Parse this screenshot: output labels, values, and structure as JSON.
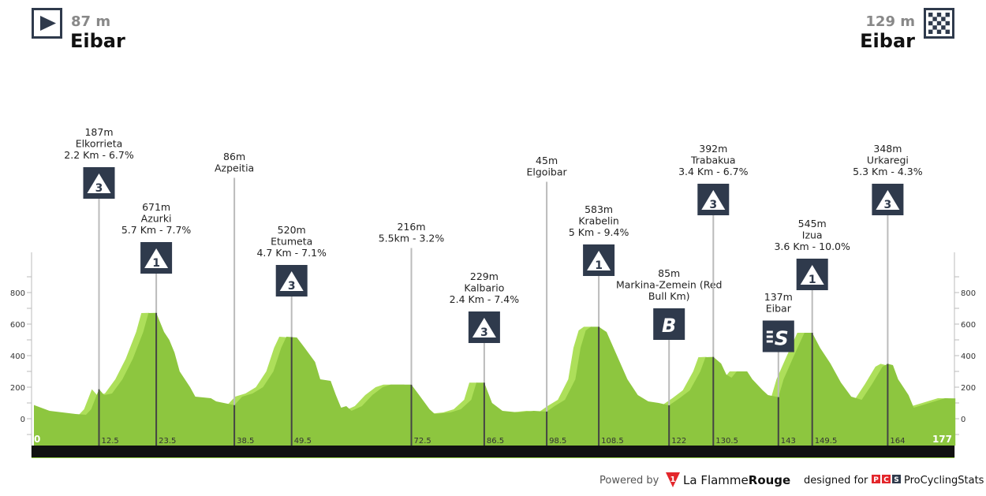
{
  "start": {
    "altitude": "87 m",
    "name": "Eibar",
    "icon": "play-start-icon"
  },
  "finish": {
    "altitude": "129 m",
    "name": "Eibar",
    "icon": "checkered-flag-icon"
  },
  "footer": {
    "powered_by": "Powered by",
    "brand1": "La Flamme",
    "brand1b": "Rouge",
    "brand1_logo": "1",
    "designed_for": "designed for",
    "pcs_letters": [
      "P",
      "C",
      "S"
    ],
    "brand2": "ProCyclingStats"
  },
  "colors": {
    "profile": "#8dc63f",
    "profile_shadow": "#addf5a",
    "badge": "#2f3a4c",
    "bar": "#111111",
    "brand_red": "#e3262b"
  },
  "chart_data": {
    "type": "area",
    "xlabel": "",
    "ylabel": "",
    "xlim": [
      0,
      177
    ],
    "ylim": [
      -200,
      1000
    ],
    "y_ticks": [
      0,
      200,
      400,
      600,
      800
    ],
    "x_ticks": [
      "0",
      "12.5",
      "23.5",
      "38.5",
      "49.5",
      "72.5",
      "86.5",
      "98.5",
      "108.5",
      "122",
      "130.5",
      "143",
      "149.5",
      "164",
      "177"
    ],
    "profile": [
      [
        0,
        87
      ],
      [
        3,
        50
      ],
      [
        8,
        30
      ],
      [
        10,
        25
      ],
      [
        11,
        60
      ],
      [
        12.5,
        187
      ],
      [
        13.5,
        150
      ],
      [
        15,
        160
      ],
      [
        17,
        250
      ],
      [
        19,
        380
      ],
      [
        21,
        550
      ],
      [
        22,
        670
      ],
      [
        23.5,
        671
      ],
      [
        25,
        550
      ],
      [
        26,
        500
      ],
      [
        27,
        420
      ],
      [
        28,
        300
      ],
      [
        30,
        200
      ],
      [
        31,
        140
      ],
      [
        34,
        130
      ],
      [
        35,
        110
      ],
      [
        38.5,
        86
      ],
      [
        40,
        140
      ],
      [
        42,
        160
      ],
      [
        44,
        200
      ],
      [
        46,
        300
      ],
      [
        47.5,
        450
      ],
      [
        48.5,
        520
      ],
      [
        50.5,
        515
      ],
      [
        52,
        450
      ],
      [
        54,
        360
      ],
      [
        55,
        250
      ],
      [
        57,
        240
      ],
      [
        58,
        150
      ],
      [
        59,
        70
      ],
      [
        60,
        80
      ],
      [
        61,
        50
      ],
      [
        63,
        80
      ],
      [
        65,
        150
      ],
      [
        67,
        200
      ],
      [
        68.5,
        216
      ],
      [
        72.5,
        216
      ],
      [
        74,
        150
      ],
      [
        76,
        60
      ],
      [
        77,
        30
      ],
      [
        80,
        40
      ],
      [
        82,
        60
      ],
      [
        84,
        120
      ],
      [
        85,
        229
      ],
      [
        86.5,
        229
      ],
      [
        88,
        100
      ],
      [
        90,
        50
      ],
      [
        93,
        40
      ],
      [
        96,
        50
      ],
      [
        98.5,
        45
      ],
      [
        100,
        80
      ],
      [
        102,
        120
      ],
      [
        104,
        250
      ],
      [
        105,
        450
      ],
      [
        106,
        560
      ],
      [
        107,
        583
      ],
      [
        108.5,
        583
      ],
      [
        110,
        550
      ],
      [
        112,
        400
      ],
      [
        114,
        250
      ],
      [
        116,
        150
      ],
      [
        118,
        110
      ],
      [
        120,
        100
      ],
      [
        122,
        85
      ],
      [
        124,
        130
      ],
      [
        126,
        180
      ],
      [
        128,
        300
      ],
      [
        129,
        390
      ],
      [
        130.5,
        392
      ],
      [
        132,
        350
      ],
      [
        133,
        280
      ],
      [
        134,
        260
      ],
      [
        135,
        300
      ],
      [
        137,
        300
      ],
      [
        138,
        250
      ],
      [
        140,
        180
      ],
      [
        141,
        150
      ],
      [
        143,
        137
      ],
      [
        144,
        250
      ],
      [
        146,
        400
      ],
      [
        148,
        545
      ],
      [
        149.5,
        545
      ],
      [
        151,
        450
      ],
      [
        153,
        350
      ],
      [
        155,
        230
      ],
      [
        157,
        140
      ],
      [
        159,
        120
      ],
      [
        161,
        220
      ],
      [
        163,
        330
      ],
      [
        164,
        348
      ],
      [
        165,
        340
      ],
      [
        166,
        250
      ],
      [
        168,
        150
      ],
      [
        169,
        70
      ],
      [
        171,
        90
      ],
      [
        173,
        110
      ],
      [
        175,
        130
      ],
      [
        177,
        129
      ]
    ],
    "markers": [
      {
        "km": 12.5,
        "lines": [
          "187m",
          "Elkorrieta",
          "2.2 Km - 6.7%"
        ],
        "badge": "3",
        "badge_type": "climb-cat-3"
      },
      {
        "km": 23.5,
        "lines": [
          "671m",
          "Azurki",
          "5.7 Km - 7.7%"
        ],
        "badge": "1",
        "badge_type": "climb-cat-1"
      },
      {
        "km": 38.5,
        "lines": [
          "86m",
          "Azpeitia"
        ],
        "badge": null
      },
      {
        "km": 49.5,
        "lines": [
          "520m",
          "Etumeta",
          "4.7 Km - 7.1%"
        ],
        "badge": "3",
        "badge_type": "climb-cat-3"
      },
      {
        "km": 72.5,
        "lines": [
          "216m",
          "5.5km - 3.2%"
        ],
        "badge": null
      },
      {
        "km": 86.5,
        "lines": [
          "229m",
          "Kalbario",
          "2.4 Km - 7.4%"
        ],
        "badge": "3",
        "badge_type": "climb-cat-3"
      },
      {
        "km": 98.5,
        "lines": [
          "45m",
          "Elgoibar"
        ],
        "badge": null
      },
      {
        "km": 108.5,
        "lines": [
          "583m",
          "Krabelin",
          "5 Km - 9.4%"
        ],
        "badge": "1",
        "badge_type": "climb-cat-1"
      },
      {
        "km": 122,
        "lines": [
          "85m",
          "Markina-Zemein (Red",
          "Bull Km)"
        ],
        "badge": "B",
        "badge_type": "bonus-sprint"
      },
      {
        "km": 130.5,
        "lines": [
          "392m",
          "Trabakua",
          "3.4 Km - 6.7%"
        ],
        "badge": "3",
        "badge_type": "climb-cat-3"
      },
      {
        "km": 143,
        "lines": [
          "137m",
          "Eibar"
        ],
        "badge": "S",
        "badge_type": "intermediate-sprint"
      },
      {
        "km": 149.5,
        "lines": [
          "545m",
          "Izua",
          "3.6 Km - 10.0%"
        ],
        "badge": "1",
        "badge_type": "climb-cat-1"
      },
      {
        "km": 164,
        "lines": [
          "348m",
          "Urkaregi",
          "5.3 Km - 4.3%"
        ],
        "badge": "3",
        "badge_type": "climb-cat-3"
      }
    ]
  }
}
